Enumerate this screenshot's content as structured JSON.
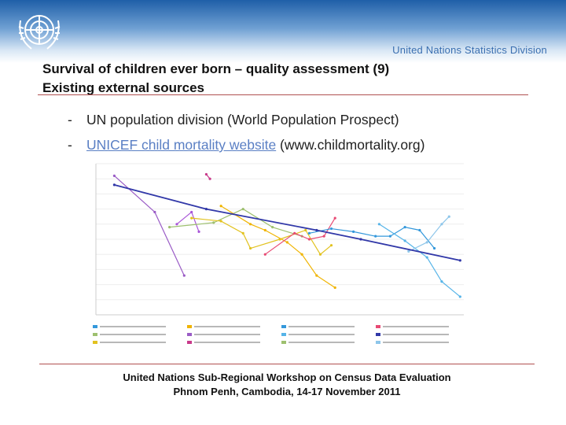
{
  "header": {
    "org_name": "United Nations Statistics Division"
  },
  "slide": {
    "title_line1": "Survival of children ever born – quality assessment (9)",
    "title_line2": "Existing external sources",
    "bullets": [
      {
        "dash": "-",
        "text": "UN population division (World Population Prospect)"
      },
      {
        "dash": "-",
        "link_text": "UNICEF child mortality website",
        "suffix": " (www.childmortality.org)"
      }
    ]
  },
  "footer": {
    "line1": "United Nations Sub-Regional Workshop on Census Data Evaluation",
    "line2": "Phnom Penh, Cambodia, 14-17 November 2011"
  },
  "chart_data": {
    "type": "line",
    "title": "",
    "xlabel": "",
    "ylabel": "",
    "xlim": [
      0,
      100
    ],
    "ylim": [
      0,
      100
    ],
    "grid": true,
    "legend_position": "bottom",
    "series": [
      {
        "color": "#9a5cc6",
        "points": [
          [
            5,
            92
          ],
          [
            16,
            68
          ],
          [
            24,
            26
          ]
        ]
      },
      {
        "color": "#a855d8",
        "points": [
          [
            22,
            60
          ],
          [
            26,
            68
          ],
          [
            28,
            55
          ]
        ]
      },
      {
        "color": "#c93a8b",
        "points": [
          [
            30,
            93
          ],
          [
            31,
            90
          ]
        ]
      },
      {
        "color": "#9ec06f",
        "points": [
          [
            20,
            58
          ],
          [
            32,
            61
          ],
          [
            40,
            70
          ],
          [
            48,
            58
          ],
          [
            56,
            52
          ]
        ]
      },
      {
        "color": "#e2c21f",
        "points": [
          [
            26,
            64
          ],
          [
            34,
            62
          ],
          [
            40,
            54
          ],
          [
            42,
            44
          ],
          [
            50,
            50
          ],
          [
            57,
            56
          ],
          [
            61,
            40
          ],
          [
            64,
            46
          ]
        ]
      },
      {
        "color": "#f0b400",
        "points": [
          [
            34,
            72
          ],
          [
            42,
            60
          ],
          [
            46,
            56
          ],
          [
            52,
            48
          ],
          [
            56,
            40
          ],
          [
            60,
            26
          ],
          [
            65,
            18
          ]
        ]
      },
      {
        "color": "#e84a74",
        "points": [
          [
            46,
            40
          ],
          [
            54,
            54
          ],
          [
            58,
            50
          ],
          [
            62,
            52
          ],
          [
            65,
            64
          ]
        ]
      },
      {
        "color": "#3498db",
        "points": [
          [
            58,
            54
          ],
          [
            64,
            57
          ],
          [
            70,
            55
          ],
          [
            76,
            52
          ],
          [
            80,
            52
          ],
          [
            84,
            58
          ],
          [
            88,
            56
          ],
          [
            92,
            44
          ]
        ]
      },
      {
        "color": "#56b4e8",
        "points": [
          [
            77,
            60
          ],
          [
            84,
            49
          ],
          [
            90,
            38
          ],
          [
            94,
            22
          ],
          [
            99,
            12
          ]
        ]
      },
      {
        "color": "#8ec6ea",
        "points": [
          [
            85,
            42
          ],
          [
            90,
            48
          ],
          [
            94,
            60
          ],
          [
            96,
            65
          ]
        ]
      },
      {
        "color": "#3138a8",
        "points": [
          [
            5,
            86
          ],
          [
            30,
            70
          ],
          [
            60,
            56
          ],
          [
            72,
            50
          ],
          [
            99,
            36
          ]
        ]
      }
    ],
    "legend": [
      {
        "color": "#3498db"
      },
      {
        "color": "#f0b400"
      },
      {
        "color": "#3498db"
      },
      {
        "color": "#e84a74"
      },
      {
        "color": "#9ec06f"
      },
      {
        "color": "#9a5cc6"
      },
      {
        "color": "#56b4e8"
      },
      {
        "color": "#3138a8"
      },
      {
        "color": "#e2c21f"
      },
      {
        "color": "#c93a8b"
      },
      {
        "color": "#9ec06f"
      },
      {
        "color": "#8ec6ea"
      }
    ]
  }
}
